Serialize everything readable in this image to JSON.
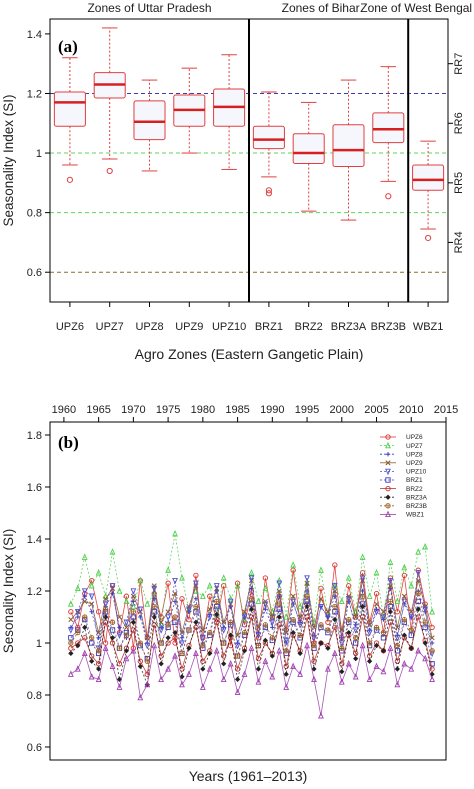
{
  "figure": {
    "panels": [
      {
        "letter": "(a)",
        "chart_data": {
          "type": "box",
          "xlabel": "Agro Zones (Eastern Gangetic Plain)",
          "ylabel": "Seasonality Index (SI)",
          "ylim": [
            0.5,
            1.45
          ],
          "yticks": [
            0.6,
            0.8,
            1.0,
            1.2,
            1.4
          ],
          "ytick_labels": [
            "0.6",
            "0.8",
            "1",
            "1.2",
            "1.4"
          ],
          "categories": [
            "UPZ6",
            "UPZ7",
            "UPZ8",
            "UPZ9",
            "UPZ10",
            "BRZ1",
            "BRZ2",
            "BRZ3A",
            "BRZ3B",
            "WBZ1"
          ],
          "boxes": [
            {
              "min": 0.96,
              "q1": 1.09,
              "median": 1.17,
              "q3": 1.205,
              "max": 1.32,
              "outliers": [
                0.91
              ]
            },
            {
              "min": 0.98,
              "q1": 1.185,
              "median": 1.23,
              "q3": 1.27,
              "max": 1.42,
              "outliers": [
                0.94
              ]
            },
            {
              "min": 0.94,
              "q1": 1.045,
              "median": 1.105,
              "q3": 1.175,
              "max": 1.245,
              "outliers": []
            },
            {
              "min": 1.0,
              "q1": 1.09,
              "median": 1.145,
              "q3": 1.195,
              "max": 1.285,
              "outliers": []
            },
            {
              "min": 0.945,
              "q1": 1.09,
              "median": 1.155,
              "q3": 1.215,
              "max": 1.33,
              "outliers": []
            },
            {
              "min": 0.92,
              "q1": 1.015,
              "median": 1.045,
              "q3": 1.09,
              "max": 1.205,
              "outliers": [
                0.875,
                0.865
              ]
            },
            {
              "min": 0.805,
              "q1": 0.965,
              "median": 1.0,
              "q3": 1.065,
              "max": 1.17,
              "outliers": []
            },
            {
              "min": 0.775,
              "q1": 0.955,
              "median": 1.01,
              "q3": 1.095,
              "max": 1.245,
              "outliers": []
            },
            {
              "min": 0.905,
              "q1": 1.035,
              "median": 1.08,
              "q3": 1.135,
              "max": 1.29,
              "outliers": [
                0.855
              ]
            },
            {
              "min": 0.745,
              "q1": 0.875,
              "median": 0.91,
              "q3": 0.96,
              "max": 1.04,
              "outliers": [
                0.715
              ]
            }
          ],
          "reference_lines": [
            {
              "y": 1.2,
              "color": "#3b3bb3"
            },
            {
              "y": 1.0,
              "color": "#5fd35f"
            },
            {
              "y": 0.8,
              "color": "#5fd35f"
            },
            {
              "y": 0.6,
              "color": "#8b6b2a"
            }
          ],
          "separators_after_index": [
            4,
            8
          ],
          "group_labels": [
            "Zones of Uttar Pradesh",
            "Zones of Bihar",
            "Zone of West Bengal"
          ],
          "right_axis_labels": [
            "RR7",
            "RR6",
            "RR5",
            "RR4"
          ],
          "right_axis_values": [
            1.3,
            1.1,
            0.9,
            0.7
          ],
          "colors": {
            "box_border": "#e04040",
            "box_fill": "#f6f6fd",
            "median": "#d62020",
            "whisker": "#e04040"
          }
        }
      },
      {
        "letter": "(b)",
        "chart_data": {
          "type": "line",
          "xlabel": "Years (1961–2013)",
          "ylabel": "Sesonality Index (SI)",
          "xlim": [
            1958,
            2015
          ],
          "ylim": [
            0.55,
            1.85
          ],
          "xticks": [
            1960,
            1965,
            1970,
            1975,
            1980,
            1985,
            1990,
            1995,
            2000,
            2005,
            2010,
            2015
          ],
          "xtick_labels": [
            "1960",
            "1965",
            "1970",
            "1975",
            "1980",
            "1985",
            "1990",
            "1995",
            "2000",
            "2005",
            "2010",
            "2015"
          ],
          "yticks": [
            0.6,
            0.8,
            1.0,
            1.2,
            1.4,
            1.6,
            1.8
          ],
          "ytick_labels": [
            "0.6",
            "0.8",
            "1",
            "1.2",
            "1.4",
            "1.6",
            "1.8"
          ],
          "legend_position": "top-right",
          "series": [
            {
              "name": "UPZ6",
              "color": "#e03030",
              "marker": "circle",
              "dash": "",
              "values": [
                1.12,
                1.06,
                1.19,
                1.24,
                1.12,
                1.0,
                1.22,
                1.04,
                1.18,
                0.98,
                1.24,
                1.02,
                1.19,
                1.1,
                1.23,
                1.0,
                1.17,
                1.09,
                1.26,
                1.02,
                1.18,
                1.09,
                1.22,
                0.99,
                1.23,
                1.07,
                1.2,
                1.02,
                1.25,
                1.1,
                1.18,
                1.05,
                1.28,
                1.08,
                1.15,
                1.0,
                1.21,
                1.08,
                1.3,
                1.02,
                1.22,
                1.1,
                1.27,
                1.08,
                1.19,
                1.04,
                1.25,
                1.12,
                1.26,
                1.05,
                1.28,
                1.15,
                1.06
              ]
            },
            {
              "name": "UPZ7",
              "color": "#4cd04c",
              "marker": "triangle",
              "dash": "2,2",
              "values": [
                1.15,
                1.21,
                1.33,
                1.22,
                1.27,
                1.18,
                1.35,
                1.2,
                1.16,
                1.14,
                1.24,
                1.15,
                1.19,
                1.07,
                1.28,
                1.42,
                1.25,
                1.13,
                1.2,
                1.18,
                1.22,
                1.11,
                1.25,
                1.17,
                1.22,
                1.09,
                1.27,
                1.16,
                1.21,
                1.12,
                1.24,
                1.1,
                1.3,
                1.14,
                1.23,
                1.08,
                1.28,
                1.11,
                1.22,
                1.16,
                1.25,
                1.12,
                1.33,
                1.18,
                1.27,
                1.1,
                1.31,
                1.16,
                1.29,
                1.22,
                1.35,
                1.37,
                1.12
              ]
            },
            {
              "name": "UPZ8",
              "color": "#3b3bc0",
              "marker": "plus",
              "dash": "2,2",
              "values": [
                1.06,
                1.1,
                1.18,
                1.12,
                1.02,
                1.14,
                1.19,
                1.06,
                1.02,
                1.16,
                1.1,
                1.0,
                1.17,
                1.06,
                1.08,
                1.16,
                1.02,
                1.12,
                1.17,
                1.0,
                1.11,
                1.2,
                1.06,
                1.14,
                1.0,
                1.1,
                1.21,
                1.04,
                1.13,
                1.06,
                1.18,
                1.0,
                1.15,
                1.08,
                1.2,
                1.03,
                1.14,
                1.1,
                1.18,
                1.02,
                1.16,
                1.07,
                1.2,
                1.05,
                1.13,
                1.09,
                1.21,
                1.03,
                1.15,
                1.1,
                1.2,
                1.12,
                1.0
              ]
            },
            {
              "name": "UPZ9",
              "color": "#8a5a2a",
              "marker": "x",
              "dash": "",
              "values": [
                1.09,
                1.12,
                1.16,
                1.15,
                1.04,
                1.17,
                1.21,
                1.1,
                1.06,
                1.18,
                1.12,
                1.02,
                1.22,
                1.08,
                1.12,
                1.19,
                1.04,
                1.14,
                1.22,
                1.05,
                1.13,
                1.21,
                1.08,
                1.15,
                1.03,
                1.12,
                1.24,
                1.06,
                1.16,
                1.1,
                1.2,
                1.04,
                1.18,
                1.1,
                1.23,
                1.06,
                1.17,
                1.12,
                1.2,
                1.05,
                1.18,
                1.1,
                1.24,
                1.07,
                1.15,
                1.12,
                1.22,
                1.06,
                1.18,
                1.12,
                1.24,
                1.14,
                1.02
              ]
            },
            {
              "name": "UPZ10",
              "color": "#5050d0",
              "marker": "triangle-down",
              "dash": "2,2",
              "values": [
                1.05,
                1.12,
                1.2,
                1.18,
                0.98,
                1.15,
                1.22,
                1.03,
                1.08,
                1.2,
                1.13,
                0.99,
                1.21,
                1.05,
                1.1,
                1.24,
                1.0,
                1.13,
                1.23,
                1.02,
                1.1,
                1.22,
                1.05,
                1.16,
                0.99,
                1.1,
                1.25,
                1.03,
                1.15,
                1.08,
                1.23,
                1.01,
                1.16,
                1.07,
                1.25,
                1.02,
                1.14,
                1.1,
                1.22,
                1.0,
                1.17,
                1.05,
                1.25,
                1.04,
                1.12,
                1.1,
                1.24,
                1.02,
                1.16,
                1.1,
                1.27,
                1.13,
                0.96
              ]
            },
            {
              "name": "BRZ1",
              "color": "#3b3bc0",
              "marker": "square",
              "dash": "2,2",
              "values": [
                1.02,
                1.05,
                1.09,
                1.0,
                0.96,
                1.12,
                1.05,
                0.98,
                1.04,
                1.1,
                0.99,
                0.94,
                1.12,
                1.0,
                1.06,
                1.08,
                0.96,
                1.05,
                1.12,
                0.98,
                1.03,
                1.14,
                1.0,
                1.07,
                0.95,
                1.03,
                1.15,
                0.99,
                1.06,
                1.01,
                1.13,
                0.96,
                1.08,
                1.02,
                1.16,
                0.98,
                1.06,
                1.04,
                1.12,
                0.97,
                1.08,
                1.0,
                1.15,
                0.99,
                1.05,
                1.02,
                1.14,
                0.97,
                1.08,
                1.03,
                1.16,
                1.06,
                0.92
              ]
            },
            {
              "name": "BRZ2",
              "color": "#c03030",
              "marker": "circle",
              "dash": "",
              "values": [
                0.98,
                1.0,
                1.02,
                0.95,
                0.92,
                1.08,
                1.0,
                0.92,
                0.98,
                1.05,
                0.93,
                0.88,
                1.07,
                0.95,
                1.0,
                1.02,
                0.9,
                0.99,
                1.06,
                0.93,
                0.97,
                1.08,
                0.95,
                1.02,
                0.9,
                0.98,
                1.1,
                0.94,
                1.0,
                0.96,
                1.07,
                0.91,
                1.03,
                0.97,
                1.1,
                0.93,
                1.0,
                0.99,
                1.06,
                0.92,
                1.03,
                0.96,
                1.1,
                0.95,
                1.0,
                0.97,
                1.08,
                0.93,
                1.02,
                0.98,
                1.1,
                1.01,
                0.9
              ]
            },
            {
              "name": "BRZ3A",
              "color": "#222222",
              "marker": "diamond",
              "dash": "2,2",
              "values": [
                0.96,
                0.99,
                1.06,
                0.93,
                0.9,
                1.1,
                1.02,
                0.86,
                0.97,
                1.08,
                0.91,
                0.84,
                1.1,
                0.92,
                1.02,
                1.04,
                0.87,
                0.98,
                1.08,
                0.9,
                0.96,
                1.11,
                0.92,
                1.03,
                0.86,
                0.97,
                1.13,
                0.9,
                1.01,
                0.95,
                1.1,
                0.88,
                1.04,
                0.96,
                1.14,
                0.9,
                1.0,
                0.98,
                1.09,
                0.89,
                1.04,
                0.94,
                1.14,
                0.93,
                0.99,
                0.97,
                1.12,
                0.9,
                1.03,
                0.98,
                1.13,
                1.0,
                0.88
              ]
            },
            {
              "name": "BRZ3B",
              "color": "#a06020",
              "marker": "circle-plus",
              "dash": "2,2",
              "values": [
                1.0,
                1.04,
                1.1,
                1.02,
                0.97,
                1.13,
                1.08,
                0.98,
                1.03,
                1.12,
                1.0,
                0.93,
                1.14,
                1.0,
                1.07,
                1.1,
                0.96,
                1.05,
                1.14,
                0.99,
                1.04,
                1.16,
                1.0,
                1.08,
                0.95,
                1.04,
                1.17,
                0.99,
                1.07,
                1.02,
                1.15,
                0.97,
                1.09,
                1.03,
                1.18,
                0.99,
                1.07,
                1.05,
                1.14,
                0.98,
                1.09,
                1.02,
                1.18,
                1.0,
                1.06,
                1.04,
                1.16,
                0.99,
                1.09,
                1.05,
                1.19,
                1.08,
                0.97
              ]
            },
            {
              "name": "WBZ1",
              "color": "#a040b0",
              "marker": "triangle",
              "dash": "",
              "values": [
                0.88,
                0.9,
                0.96,
                0.87,
                0.86,
                0.98,
                0.91,
                0.83,
                0.94,
                0.97,
                0.79,
                0.84,
                0.99,
                0.86,
                0.9,
                0.95,
                0.84,
                0.88,
                0.96,
                0.83,
                0.9,
                0.97,
                0.86,
                0.92,
                0.81,
                0.88,
                0.98,
                0.85,
                0.93,
                0.87,
                0.97,
                0.83,
                0.91,
                0.88,
                0.99,
                0.86,
                0.72,
                0.9,
                0.96,
                0.85,
                0.92,
                0.87,
                0.99,
                0.86,
                0.91,
                0.89,
                0.98,
                0.84,
                0.92,
                0.9,
                0.97,
                0.94,
                0.86
              ]
            }
          ]
        }
      }
    ]
  }
}
